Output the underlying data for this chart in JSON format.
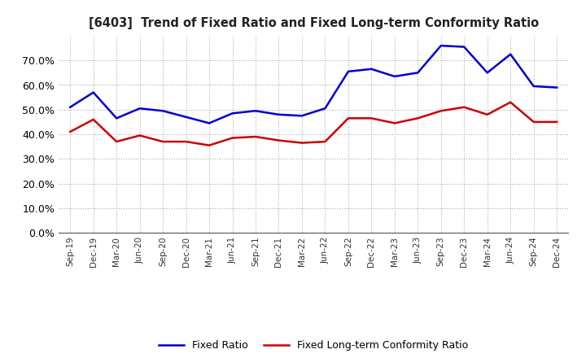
{
  "title": "[6403]  Trend of Fixed Ratio and Fixed Long-term Conformity Ratio",
  "x_labels": [
    "Sep-19",
    "Dec-19",
    "Mar-20",
    "Jun-20",
    "Sep-20",
    "Dec-20",
    "Mar-21",
    "Jun-21",
    "Sep-21",
    "Dec-21",
    "Mar-22",
    "Jun-22",
    "Sep-22",
    "Dec-22",
    "Mar-23",
    "Jun-23",
    "Sep-23",
    "Dec-23",
    "Mar-24",
    "Jun-24",
    "Sep-24",
    "Dec-24"
  ],
  "fixed_ratio": [
    51.0,
    57.0,
    46.5,
    50.5,
    49.5,
    47.0,
    44.5,
    48.5,
    49.5,
    48.0,
    47.5,
    50.5,
    65.5,
    66.5,
    63.5,
    65.0,
    76.0,
    75.5,
    65.0,
    72.5,
    59.5,
    59.0
  ],
  "fixed_lt_ratio": [
    41.0,
    46.0,
    37.0,
    39.5,
    37.0,
    37.0,
    35.5,
    38.5,
    39.0,
    37.5,
    36.5,
    37.0,
    46.5,
    46.5,
    44.5,
    46.5,
    49.5,
    51.0,
    48.0,
    53.0,
    45.0,
    45.0
  ],
  "fixed_ratio_color": "#0000CC",
  "fixed_lt_ratio_color": "#CC0000",
  "ylim": [
    0,
    80
  ],
  "yticks": [
    0,
    10,
    20,
    30,
    40,
    50,
    60,
    70
  ],
  "legend_fixed_ratio": "Fixed Ratio",
  "legend_fixed_lt_ratio": "Fixed Long-term Conformity Ratio",
  "background_color": "#ffffff",
  "grid_color": "#aaaaaa",
  "line_width": 1.8
}
